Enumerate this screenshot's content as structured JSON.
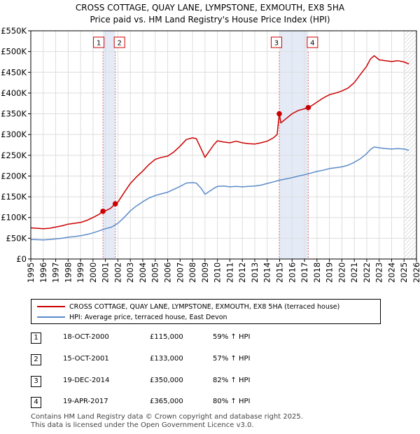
{
  "header": {
    "title_line1": "CROSS COTTAGE, QUAY LANE, LYMPSTONE, EXMOUTH, EX8 5HA",
    "title_line2": "Price paid vs. HM Land Registry's House Price Index (HPI)"
  },
  "chart_data": {
    "type": "line",
    "title": "CROSS COTTAGE, QUAY LANE, LYMPSTONE, EXMOUTH, EX8 5HA — Price paid vs. HM Land Registry's House Price Index (HPI)",
    "xlabel": "",
    "ylabel": "",
    "xlim": [
      1995,
      2026
    ],
    "ylim": [
      0,
      550000
    ],
    "x_ticks": [
      1995,
      1996,
      1997,
      1998,
      1999,
      2000,
      2001,
      2002,
      2003,
      2004,
      2005,
      2006,
      2007,
      2008,
      2009,
      2010,
      2011,
      2012,
      2013,
      2014,
      2015,
      2016,
      2017,
      2018,
      2019,
      2020,
      2021,
      2022,
      2023,
      2024,
      2025,
      2026
    ],
    "y_ticks": [
      0,
      50000,
      100000,
      150000,
      200000,
      250000,
      300000,
      350000,
      400000,
      450000,
      500000,
      550000
    ],
    "y_tick_labels": [
      "£0",
      "£50K",
      "£100K",
      "£150K",
      "£200K",
      "£250K",
      "£300K",
      "£350K",
      "£400K",
      "£450K",
      "£500K",
      "£550K"
    ],
    "series": [
      {
        "name": "CROSS COTTAGE, QUAY LANE, LYMPSTONE, EXMOUTH, EX8 5HA (terraced house)",
        "color": "#cc0000",
        "points": [
          [
            1995.0,
            75000
          ],
          [
            1995.5,
            74000
          ],
          [
            1996.0,
            73000
          ],
          [
            1996.5,
            74000
          ],
          [
            1997.0,
            77000
          ],
          [
            1997.5,
            80000
          ],
          [
            1998.0,
            84000
          ],
          [
            1998.5,
            86000
          ],
          [
            1999.0,
            88000
          ],
          [
            1999.5,
            93000
          ],
          [
            2000.0,
            100000
          ],
          [
            2000.5,
            108000
          ],
          [
            2000.8,
            115000
          ],
          [
            2001.0,
            116000
          ],
          [
            2001.4,
            122000
          ],
          [
            2001.79,
            133000
          ],
          [
            2002.0,
            137000
          ],
          [
            2002.5,
            160000
          ],
          [
            2003.0,
            182000
          ],
          [
            2003.5,
            198000
          ],
          [
            2004.0,
            212000
          ],
          [
            2004.5,
            228000
          ],
          [
            2005.0,
            240000
          ],
          [
            2005.5,
            245000
          ],
          [
            2006.0,
            248000
          ],
          [
            2006.5,
            258000
          ],
          [
            2007.0,
            272000
          ],
          [
            2007.5,
            288000
          ],
          [
            2008.0,
            292000
          ],
          [
            2008.3,
            290000
          ],
          [
            2008.7,
            265000
          ],
          [
            2009.0,
            245000
          ],
          [
            2009.3,
            258000
          ],
          [
            2009.7,
            275000
          ],
          [
            2010.0,
            285000
          ],
          [
            2010.5,
            282000
          ],
          [
            2011.0,
            280000
          ],
          [
            2011.5,
            284000
          ],
          [
            2012.0,
            280000
          ],
          [
            2012.5,
            278000
          ],
          [
            2013.0,
            277000
          ],
          [
            2013.5,
            280000
          ],
          [
            2014.0,
            284000
          ],
          [
            2014.5,
            292000
          ],
          [
            2014.8,
            300000
          ],
          [
            2014.97,
            350000
          ],
          [
            2015.1,
            328000
          ],
          [
            2015.5,
            338000
          ],
          [
            2016.0,
            350000
          ],
          [
            2016.5,
            358000
          ],
          [
            2017.0,
            362000
          ],
          [
            2017.3,
            365000
          ],
          [
            2017.5,
            368000
          ],
          [
            2018.0,
            378000
          ],
          [
            2018.5,
            388000
          ],
          [
            2019.0,
            396000
          ],
          [
            2019.5,
            400000
          ],
          [
            2020.0,
            405000
          ],
          [
            2020.5,
            412000
          ],
          [
            2021.0,
            425000
          ],
          [
            2021.5,
            445000
          ],
          [
            2022.0,
            465000
          ],
          [
            2022.3,
            482000
          ],
          [
            2022.6,
            490000
          ],
          [
            2023.0,
            480000
          ],
          [
            2023.5,
            478000
          ],
          [
            2024.0,
            476000
          ],
          [
            2024.5,
            478000
          ],
          [
            2025.0,
            475000
          ],
          [
            2025.4,
            470000
          ]
        ]
      },
      {
        "name": "HPI: Average price, terraced house, East Devon",
        "color": "#5b8bc9",
        "points": [
          [
            1995.0,
            47000
          ],
          [
            1995.5,
            46500
          ],
          [
            1996.0,
            46000
          ],
          [
            1996.5,
            47000
          ],
          [
            1997.0,
            48500
          ],
          [
            1997.5,
            50000
          ],
          [
            1998.0,
            52500
          ],
          [
            1998.5,
            54000
          ],
          [
            1999.0,
            56000
          ],
          [
            1999.5,
            59000
          ],
          [
            2000.0,
            63000
          ],
          [
            2000.5,
            68000
          ],
          [
            2001.0,
            73000
          ],
          [
            2001.5,
            77000
          ],
          [
            2002.0,
            86000
          ],
          [
            2002.5,
            100000
          ],
          [
            2003.0,
            116000
          ],
          [
            2003.5,
            128000
          ],
          [
            2004.0,
            138000
          ],
          [
            2004.5,
            147000
          ],
          [
            2005.0,
            153000
          ],
          [
            2005.5,
            157000
          ],
          [
            2006.0,
            161000
          ],
          [
            2006.5,
            168000
          ],
          [
            2007.0,
            175000
          ],
          [
            2007.5,
            183000
          ],
          [
            2008.0,
            184000
          ],
          [
            2008.3,
            183000
          ],
          [
            2008.7,
            170000
          ],
          [
            2009.0,
            156000
          ],
          [
            2009.3,
            162000
          ],
          [
            2009.7,
            170000
          ],
          [
            2010.0,
            175000
          ],
          [
            2010.5,
            176000
          ],
          [
            2011.0,
            174000
          ],
          [
            2011.5,
            175000
          ],
          [
            2012.0,
            174000
          ],
          [
            2012.5,
            175000
          ],
          [
            2013.0,
            176000
          ],
          [
            2013.5,
            178000
          ],
          [
            2014.0,
            182000
          ],
          [
            2014.5,
            186000
          ],
          [
            2015.0,
            190000
          ],
          [
            2015.5,
            193000
          ],
          [
            2016.0,
            196000
          ],
          [
            2016.5,
            200000
          ],
          [
            2017.0,
            203000
          ],
          [
            2017.5,
            207000
          ],
          [
            2018.0,
            211000
          ],
          [
            2018.5,
            214000
          ],
          [
            2019.0,
            218000
          ],
          [
            2019.5,
            220000
          ],
          [
            2020.0,
            222000
          ],
          [
            2020.5,
            226000
          ],
          [
            2021.0,
            233000
          ],
          [
            2021.5,
            242000
          ],
          [
            2022.0,
            254000
          ],
          [
            2022.3,
            264000
          ],
          [
            2022.6,
            270000
          ],
          [
            2023.0,
            268000
          ],
          [
            2023.5,
            266000
          ],
          [
            2024.0,
            265000
          ],
          [
            2024.5,
            266000
          ],
          [
            2025.0,
            265000
          ],
          [
            2025.4,
            262000
          ]
        ]
      }
    ],
    "sales": [
      {
        "label": "1",
        "x": 2000.8,
        "price": 115000
      },
      {
        "label": "2",
        "x": 2001.79,
        "price": 133000
      },
      {
        "label": "3",
        "x": 2014.97,
        "price": 350000
      },
      {
        "label": "4",
        "x": 2017.3,
        "price": 365000
      }
    ],
    "shaded_ranges": [
      [
        2000.8,
        2001.79
      ],
      [
        2014.97,
        2017.3
      ]
    ],
    "future_hatch_start": 2025.0
  },
  "legend": {
    "property_label": "CROSS COTTAGE, QUAY LANE, LYMPSTONE, EXMOUTH, EX8 5HA (terraced house)",
    "hpi_label": "HPI: Average price, terraced house, East Devon",
    "property_color": "#cc0000",
    "hpi_color": "#5b8bc9"
  },
  "transactions": [
    {
      "num": "1",
      "date": "18-OCT-2000",
      "price": "£115,000",
      "hpi": "59% ↑ HPI"
    },
    {
      "num": "2",
      "date": "15-OCT-2001",
      "price": "£133,000",
      "hpi": "57% ↑ HPI"
    },
    {
      "num": "3",
      "date": "19-DEC-2014",
      "price": "£350,000",
      "hpi": "82% ↑ HPI"
    },
    {
      "num": "4",
      "date": "19-APR-2017",
      "price": "£365,000",
      "hpi": "80% ↑ HPI"
    }
  ],
  "footer": {
    "line1": "Contains HM Land Registry data © Crown copyright and database right 2025.",
    "line2": "This data is licensed under the Open Government Licence v3.0."
  }
}
